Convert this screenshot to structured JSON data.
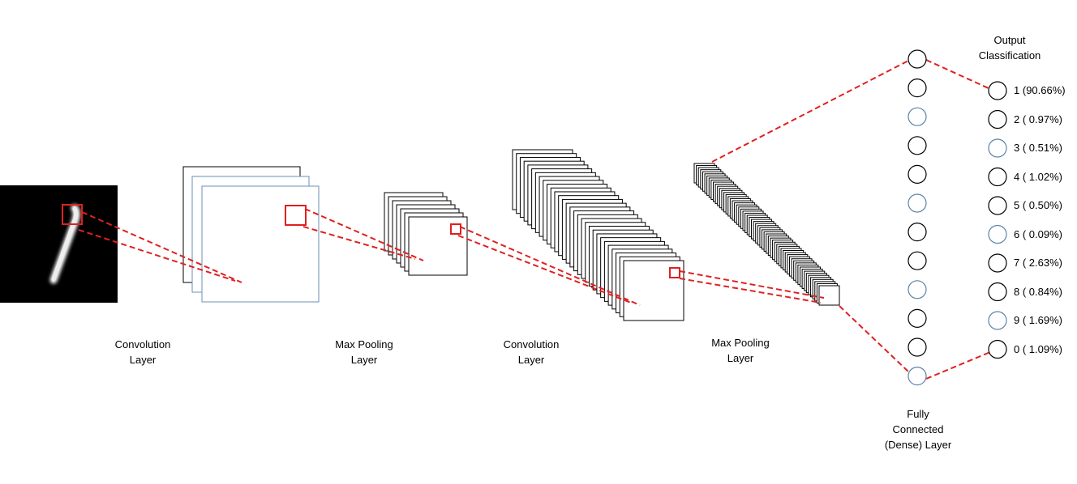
{
  "labels": {
    "conv1": [
      "Convolution",
      "Layer"
    ],
    "pool1": [
      "Max Pooling",
      "Layer"
    ],
    "conv2": [
      "Convolution",
      "Layer"
    ],
    "pool2": [
      "Max Pooling",
      "Layer"
    ],
    "dense": [
      "Fully",
      "Connected",
      "(Dense) Layer"
    ],
    "output": [
      "Output",
      "Classification"
    ]
  },
  "outputs": [
    {
      "digit": "1",
      "pct": "(90.66%)"
    },
    {
      "digit": "2",
      "pct": "( 0.97%)"
    },
    {
      "digit": "3",
      "pct": "( 0.51%)"
    },
    {
      "digit": "4",
      "pct": "( 1.02%)"
    },
    {
      "digit": "5",
      "pct": "( 0.50%)"
    },
    {
      "digit": "6",
      "pct": "( 0.09%)"
    },
    {
      "digit": "7",
      "pct": "( 2.63%)"
    },
    {
      "digit": "8",
      "pct": "( 0.84%)"
    },
    {
      "digit": "9",
      "pct": "( 1.69%)"
    },
    {
      "digit": "0",
      "pct": "( 1.09%)"
    }
  ],
  "colors": {
    "connector": "#e02020",
    "neuron_black": "#000000",
    "neuron_blue": "#5b83a8",
    "map_blue": "#6b8fb3"
  },
  "dense_neuron_styles": [
    "black",
    "black",
    "blue",
    "black",
    "black",
    "blue",
    "black",
    "black",
    "blue",
    "black",
    "black",
    "blue"
  ],
  "output_neuron_styles": [
    "black",
    "black",
    "blue",
    "black",
    "black",
    "blue",
    "black",
    "black",
    "blue",
    "black"
  ]
}
